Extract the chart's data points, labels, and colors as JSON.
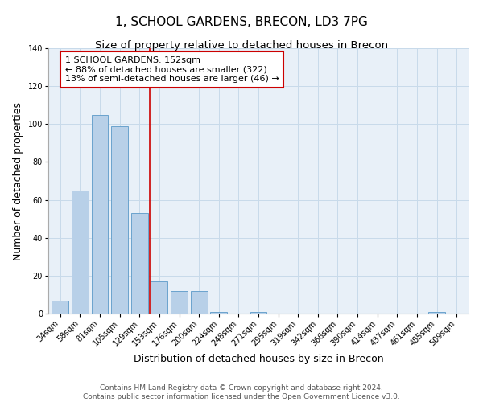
{
  "title": "1, SCHOOL GARDENS, BRECON, LD3 7PG",
  "subtitle": "Size of property relative to detached houses in Brecon",
  "xlabel": "Distribution of detached houses by size in Brecon",
  "ylabel": "Number of detached properties",
  "categories": [
    "34sqm",
    "58sqm",
    "81sqm",
    "105sqm",
    "129sqm",
    "153sqm",
    "176sqm",
    "200sqm",
    "224sqm",
    "248sqm",
    "271sqm",
    "295sqm",
    "319sqm",
    "342sqm",
    "366sqm",
    "390sqm",
    "414sqm",
    "437sqm",
    "461sqm",
    "485sqm",
    "509sqm"
  ],
  "values": [
    7,
    65,
    105,
    99,
    53,
    17,
    12,
    12,
    1,
    0,
    1,
    0,
    0,
    0,
    0,
    0,
    0,
    0,
    0,
    1,
    0
  ],
  "bar_color": "#b8d0e8",
  "bar_edge_color": "#6aa3cd",
  "highlight_line_color": "#cc0000",
  "annotation_line1": "1 SCHOOL GARDENS: 152sqm",
  "annotation_line2": "← 88% of detached houses are smaller (322)",
  "annotation_line3": "13% of semi-detached houses are larger (46) →",
  "annotation_box_color": "#ffffff",
  "annotation_box_edge_color": "#cc0000",
  "ylim": [
    0,
    140
  ],
  "yticks": [
    0,
    20,
    40,
    60,
    80,
    100,
    120,
    140
  ],
  "footer_line1": "Contains HM Land Registry data © Crown copyright and database right 2024.",
  "footer_line2": "Contains public sector information licensed under the Open Government Licence v3.0.",
  "title_fontsize": 11,
  "subtitle_fontsize": 9.5,
  "axis_label_fontsize": 9,
  "tick_fontsize": 7,
  "footer_fontsize": 6.5,
  "annotation_fontsize": 8
}
